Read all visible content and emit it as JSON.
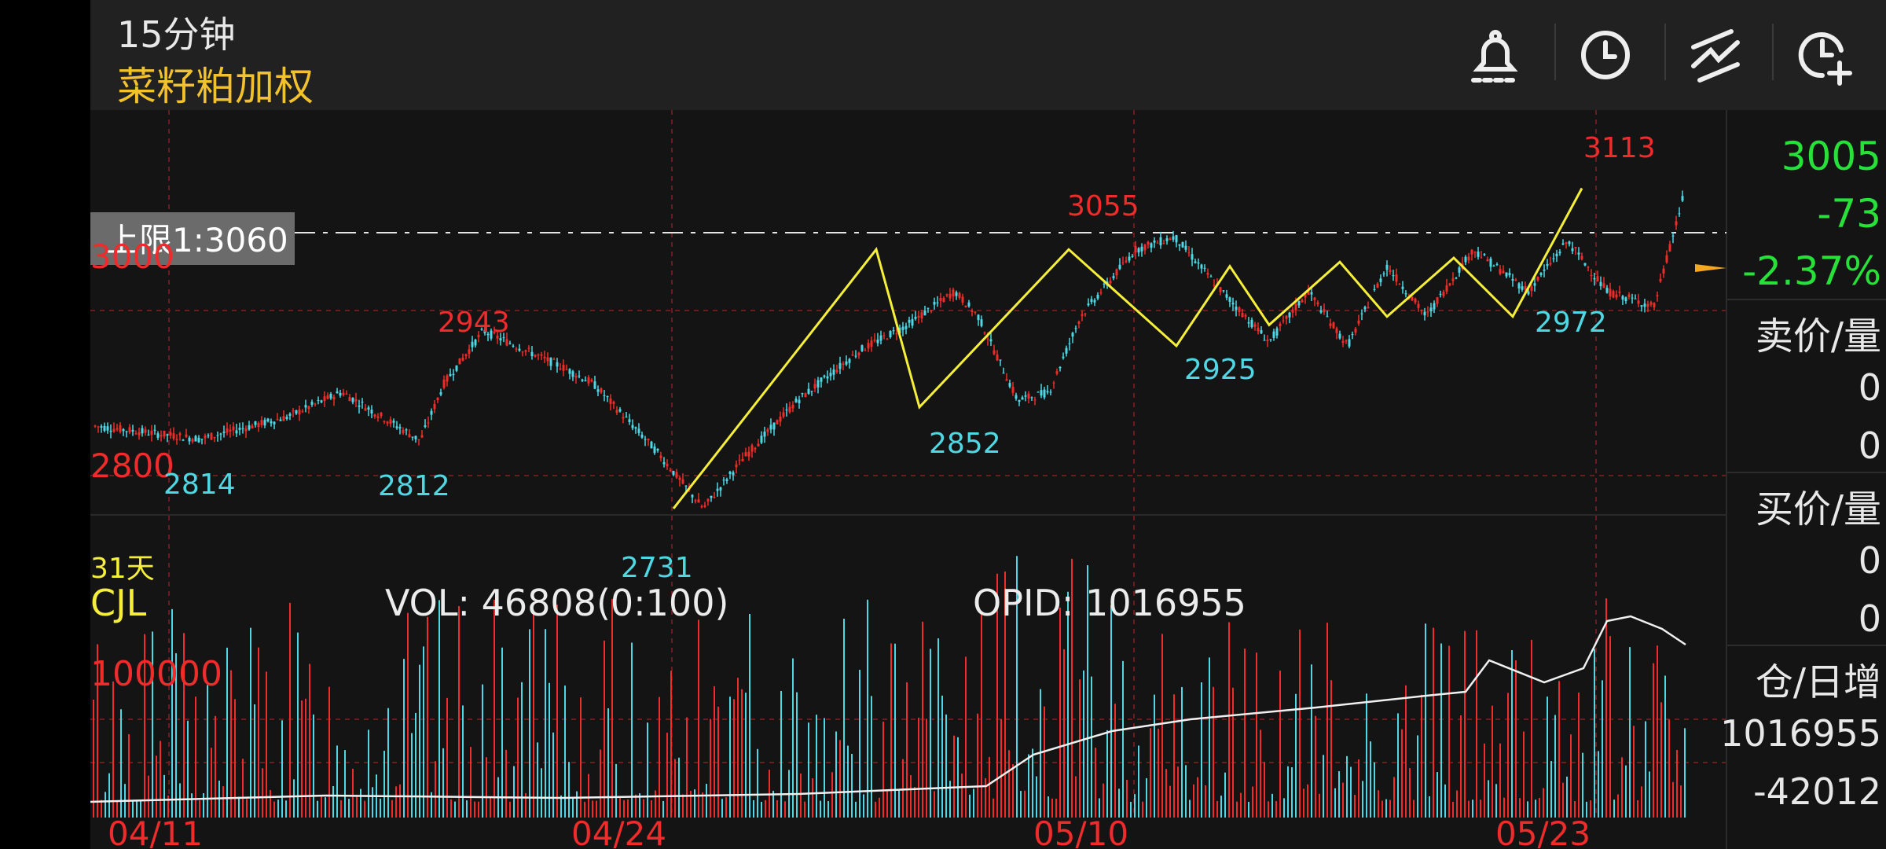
{
  "header": {
    "period": "15分钟",
    "symbol": "菜籽粕加权"
  },
  "toolbar": [
    {
      "icon": "alarm-bell-icon"
    },
    {
      "icon": "clock-icon"
    },
    {
      "icon": "drawing-lines-icon"
    },
    {
      "icon": "add-clock-icon"
    }
  ],
  "price_axis": {
    "upper": "3000",
    "lower": "2800"
  },
  "limit_line": {
    "label": "上限1:",
    "value": "3060"
  },
  "price_labels": {
    "high_3113": "3113",
    "high_3055": "3055",
    "high_2943": "2943",
    "low_2814": "2814",
    "low_2812": "2812",
    "low_2731": "2731",
    "low_2852": "2852",
    "low_2925": "2925",
    "low_2972": "2972"
  },
  "days_label": "31天",
  "volume": {
    "name": "CJL",
    "vol": "VOL: 46808(0:100)",
    "opid": "OPID: 1016955",
    "axis_label": "100000"
  },
  "dates": [
    "04/11",
    "04/24",
    "05/10",
    "05/23"
  ],
  "quote": {
    "price": "3005",
    "change": "-73",
    "change_pct": "-2.37%",
    "ask_label": "卖价/量",
    "ask_price": "0",
    "ask_volume": "0",
    "bid_label": "买价/量",
    "bid_price": "0",
    "bid_volume": "0",
    "oi_label": "仓/日增",
    "open_interest": "1016955",
    "daily_change": "-42012"
  },
  "colors": {
    "up": "#ef2b2b",
    "down": "#4fd8e3",
    "zigzag": "#f5ef3a",
    "symbol": "#f2c12e",
    "gain": "#28e03a"
  },
  "chart_data": {
    "type": "candlestick",
    "period": "15分钟",
    "price_range": [
      2700,
      3150
    ],
    "limit": 3060,
    "zigzag_points": [
      2731,
      3040,
      2852,
      3040,
      2925,
      3020,
      2950,
      3025,
      2960,
      3030,
      2960,
      3113
    ],
    "marked_highs": [
      2943,
      3055,
      3113
    ],
    "marked_lows": [
      2814,
      2812,
      2731,
      2852,
      2925,
      2972
    ],
    "volume_axis_mark": 100000,
    "date_ticks": [
      "04/11",
      "04/24",
      "05/10",
      "05/23"
    ],
    "last_price": 3005
  }
}
